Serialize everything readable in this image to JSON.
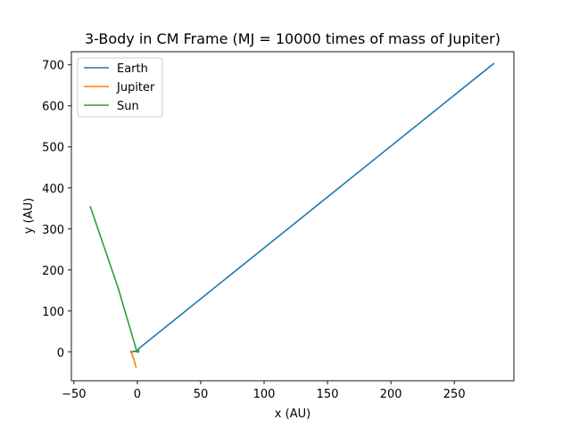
{
  "chart_data": {
    "type": "line",
    "title": "3-Body  in CM Frame (MJ = 10000 times of mass of Jupiter)",
    "xlabel": "x (AU)",
    "ylabel": "y (AU)",
    "xlim": [
      -52,
      297
    ],
    "ylim": [
      -70,
      732
    ],
    "xticks": [
      -50,
      0,
      50,
      100,
      150,
      200,
      250
    ],
    "yticks": [
      0,
      100,
      200,
      300,
      400,
      500,
      600,
      700
    ],
    "grid": false,
    "legend_position": "upper-left",
    "series": [
      {
        "name": "Earth",
        "color": "#1f77b4",
        "x": [
          -5,
          -1,
          0,
          1,
          281
        ],
        "y": [
          0,
          2,
          0,
          8,
          703
        ]
      },
      {
        "name": "Jupiter",
        "color": "#ff7f0e",
        "x": [
          -5,
          -3,
          -1
        ],
        "y": [
          2,
          -15,
          -37
        ]
      },
      {
        "name": "Sun",
        "color": "#2ca02c",
        "x": [
          -37,
          -15,
          -1,
          0,
          -2,
          1,
          1
        ],
        "y": [
          354,
          155,
          8,
          0,
          2,
          0,
          8
        ]
      }
    ]
  }
}
